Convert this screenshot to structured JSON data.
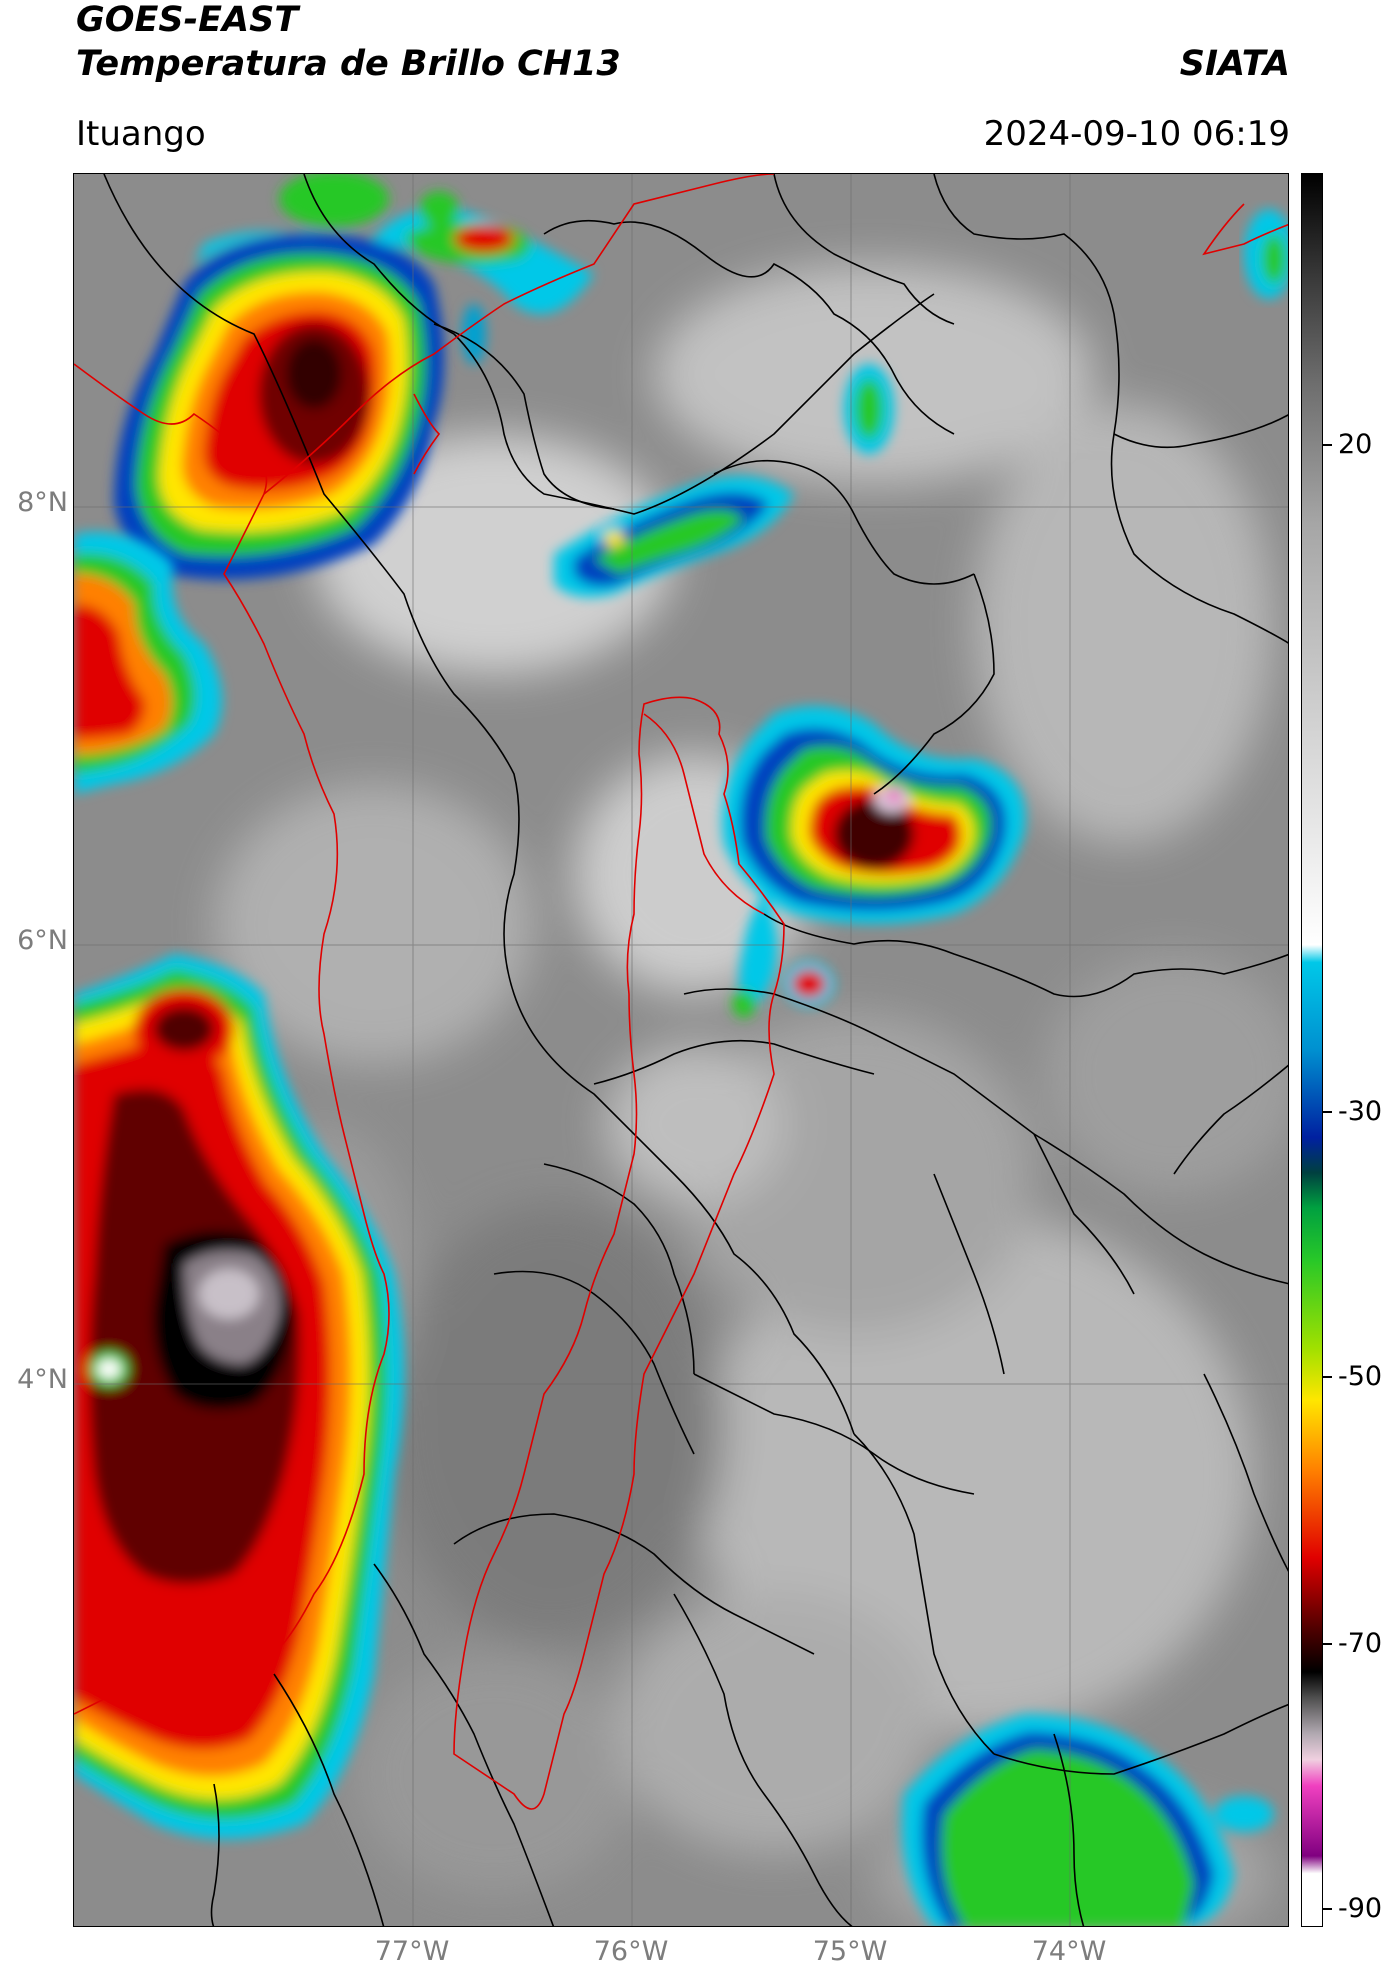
{
  "header": {
    "satellite": "GOES-EAST",
    "product": "Temperatura de Brillo CH13",
    "brand": "SIATA",
    "location": "Ituango",
    "datetime": "2024-09-10 06:19"
  },
  "map": {
    "lat_labels": [
      "8°N",
      "6°N",
      "4°N"
    ],
    "lon_labels": [
      "77°W",
      "76°W",
      "75°W",
      "74°W"
    ],
    "lat_values": [
      8,
      6,
      4
    ],
    "lon_values": [
      -77,
      -76,
      -75,
      -74
    ],
    "extent": {
      "lon_min": -78.55,
      "lon_max": -73.0,
      "lat_min": 1.55,
      "lat_max": 9.55
    }
  },
  "colorbar": {
    "label": "",
    "tick_labels": [
      "20",
      "-30",
      "-50",
      "-70",
      "-90"
    ],
    "range": [
      -92,
      30
    ],
    "colors": {
      "warm": "#ffffff",
      "cyan": "#00c8e8",
      "blue": "#0020a0",
      "green": "#28c828",
      "yellow": "#ffe600",
      "orange": "#ff8000",
      "red": "#e00000",
      "darkred": "#500000",
      "black": "#000000",
      "gray": "#b0a8b0",
      "pink": "#f040c0",
      "purple": "#800080"
    }
  },
  "colors": {
    "borders": "#000000",
    "basin_outline": "#e00000",
    "background_cloud": "#8c8c8c"
  }
}
